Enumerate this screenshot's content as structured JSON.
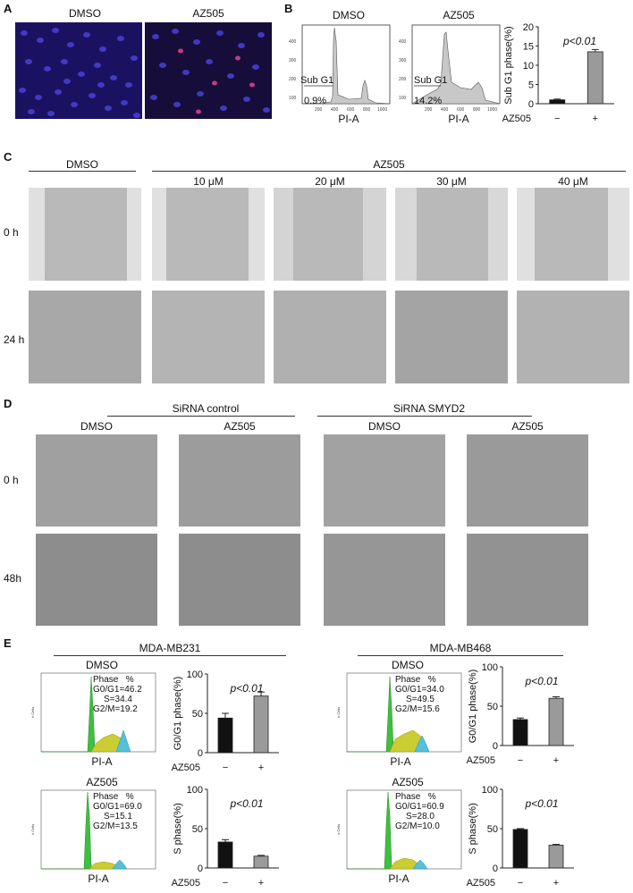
{
  "panels": {
    "A": {
      "letter": "A",
      "labels": [
        "DMSO",
        "AZ505"
      ]
    },
    "B": {
      "letter": "B",
      "histograms": [
        {
          "title": "DMSO",
          "gate_label": "Sub G1",
          "gate_value": "0.9%",
          "xlabel": "PI-A"
        },
        {
          "title": "AZ505",
          "gate_label": "Sub G1",
          "gate_value": "14.2%",
          "xlabel": "PI-A"
        }
      ],
      "hist_y_ticks": [
        "400",
        "300",
        "200",
        "100"
      ],
      "hist_x_ticks": [
        "200",
        "400",
        "600",
        "800",
        "1000"
      ]
    },
    "C": {
      "letter": "C",
      "header_dmso": "DMSO",
      "header_az": "AZ505",
      "concentrations": [
        "10 μM",
        "20 μM",
        "30 μM",
        "40 μM"
      ],
      "rows": [
        "0 h",
        "24 h"
      ]
    },
    "D": {
      "letter": "D",
      "groups": [
        "SiRNA  control",
        "SiRNA SMYD2"
      ],
      "columns": [
        "DMSO",
        "AZ505",
        "DMSO",
        "AZ505"
      ],
      "rows": [
        "0 h",
        "48h"
      ]
    },
    "E": {
      "letter": "E",
      "cell_lines": [
        "MDA-MB231",
        "MDA-MB468"
      ],
      "treatments": [
        "DMSO",
        "AZ505"
      ],
      "phase_header": "Phase   %",
      "phase_data": [
        {
          "g0g1": "G0/G1=46.2",
          "s": "S=34.4",
          "g2m": "G2/M=19.2"
        },
        {
          "g0g1": "G0/G1=34.0",
          "s": "S=49.5",
          "g2m": "G2/M=15.6"
        },
        {
          "g0g1": "G0/G1=69.0",
          "s": "S=15.1",
          "g2m": "G2/M=13.5"
        },
        {
          "g0g1": "G0/G1=60.9",
          "s": "S=28.0",
          "g2m": "G2/M=10.0"
        }
      ],
      "xlabel": "PI-A",
      "ylabel_small": "# Cells"
    }
  },
  "colors": {
    "bar_control": "#111111",
    "bar_treated": "#9a9a9a",
    "hist_fill": "#c8c8c8",
    "g1_fill": "#3fbf3f",
    "s_fill": "#cccc33",
    "g2_fill": "#55c0d8"
  },
  "chart_data": [
    {
      "type": "bar",
      "categories": [
        "−",
        "+"
      ],
      "values": [
        1.0,
        13.5
      ],
      "errors": [
        0.2,
        0.6
      ],
      "xlabel": "AZ505",
      "ylabel": "Sub G1 phase(%)",
      "ylim": [
        0,
        20
      ],
      "yticks": [
        0,
        5,
        10,
        15,
        20
      ],
      "annotation": "p<0.01"
    },
    {
      "type": "bar",
      "categories": [
        "−",
        "+"
      ],
      "values": [
        44,
        72
      ],
      "errors": [
        6,
        5
      ],
      "xlabel": "AZ505",
      "ylabel": "G0/G1 phase(%)",
      "ylim": [
        0,
        100
      ],
      "yticks": [
        0,
        50,
        100
      ],
      "annotation": "p<0.01"
    },
    {
      "type": "bar",
      "categories": [
        "−",
        "+"
      ],
      "values": [
        33,
        60
      ],
      "errors": [
        2,
        2
      ],
      "xlabel": "AZ505",
      "ylabel": "G0/G1 phase(%)",
      "ylim": [
        0,
        100
      ],
      "yticks": [
        0,
        50,
        100
      ],
      "annotation": "p<0.01"
    },
    {
      "type": "bar",
      "categories": [
        "−",
        "+"
      ],
      "values": [
        33,
        15
      ],
      "errors": [
        3,
        1
      ],
      "xlabel": "AZ505",
      "ylabel": "S phase(%)",
      "ylim": [
        0,
        100
      ],
      "yticks": [
        0,
        50,
        100
      ],
      "annotation": "p<0.01"
    },
    {
      "type": "bar",
      "categories": [
        "−",
        "+"
      ],
      "values": [
        49,
        29
      ],
      "errors": [
        1,
        1
      ],
      "xlabel": "AZ505",
      "ylabel": "S phase(%)",
      "ylim": [
        0,
        100
      ],
      "yticks": [
        0,
        50,
        100
      ],
      "annotation": "p<0.01"
    }
  ]
}
